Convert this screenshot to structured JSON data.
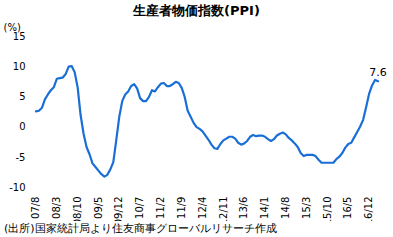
{
  "chart_data": {
    "type": "line",
    "title": "生産者物価指数(PPI)",
    "y_label": "(%)",
    "caption": "(出所)国家統計局より住友商事グローバルリサーチ作成",
    "color": "#1a6fd6",
    "grid": false,
    "ylim": [
      -10,
      15
    ],
    "yticks": [
      -10,
      -5,
      0,
      5,
      10,
      15
    ],
    "categories": [
      "07/8",
      null,
      null,
      null,
      null,
      null,
      null,
      "08/3",
      null,
      null,
      null,
      null,
      null,
      null,
      "08/10",
      null,
      null,
      null,
      null,
      null,
      null,
      "09/5",
      null,
      null,
      null,
      null,
      null,
      null,
      "09/12",
      null,
      null,
      null,
      null,
      null,
      null,
      "10/7",
      null,
      null,
      null,
      null,
      null,
      null,
      "11/2",
      null,
      null,
      null,
      null,
      null,
      null,
      "11/9",
      null,
      null,
      null,
      null,
      null,
      null,
      "12/4",
      null,
      null,
      null,
      null,
      null,
      null,
      "12/11",
      null,
      null,
      null,
      null,
      null,
      null,
      "13/6",
      null,
      null,
      null,
      null,
      null,
      null,
      "14/1",
      null,
      null,
      null,
      null,
      null,
      null,
      "14/8",
      null,
      null,
      null,
      null,
      null,
      null,
      "15/3",
      null,
      null,
      null,
      null,
      null,
      null,
      "15/10",
      null,
      null,
      null,
      null,
      null,
      null,
      "16/5",
      null,
      null,
      null,
      null,
      null,
      null,
      "16/12",
      null,
      null,
      null
    ],
    "values": [
      2.6,
      2.7,
      3.2,
      4.6,
      5.4,
      6.1,
      6.6,
      8.0,
      8.1,
      8.2,
      8.8,
      10.0,
      10.1,
      9.1,
      6.6,
      2.0,
      -1.1,
      -3.3,
      -4.5,
      -6.0,
      -6.6,
      -7.2,
      -7.8,
      -8.2,
      -7.9,
      -7.0,
      -5.8,
      -2.1,
      1.7,
      4.3,
      5.4,
      5.9,
      6.8,
      7.1,
      6.4,
      4.8,
      4.3,
      4.3,
      5.0,
      6.1,
      5.9,
      6.6,
      7.2,
      7.3,
      6.8,
      6.8,
      7.1,
      7.5,
      7.3,
      6.5,
      5.0,
      2.7,
      1.7,
      0.7,
      0.0,
      -0.3,
      -0.7,
      -1.4,
      -2.1,
      -2.9,
      -3.5,
      -3.6,
      -2.8,
      -2.2,
      -1.9,
      -1.6,
      -1.6,
      -1.9,
      -2.6,
      -2.9,
      -2.7,
      -2.3,
      -1.6,
      -1.3,
      -1.5,
      -1.4,
      -1.4,
      -1.6,
      -2.0,
      -2.3,
      -2.0,
      -1.4,
      -1.1,
      -0.9,
      -1.2,
      -1.8,
      -2.2,
      -2.7,
      -3.3,
      -4.3,
      -4.8,
      -4.6,
      -4.6,
      -4.6,
      -4.8,
      -5.4,
      -5.9,
      -5.9,
      -5.9,
      -5.9,
      -5.9,
      -5.3,
      -4.9,
      -4.3,
      -3.4,
      -2.8,
      -2.6,
      -1.7,
      -0.8,
      0.1,
      1.2,
      3.3,
      5.5,
      6.9,
      7.8,
      7.6
    ],
    "annotations": [
      {
        "text": "7.6",
        "value": 7.6
      }
    ]
  }
}
